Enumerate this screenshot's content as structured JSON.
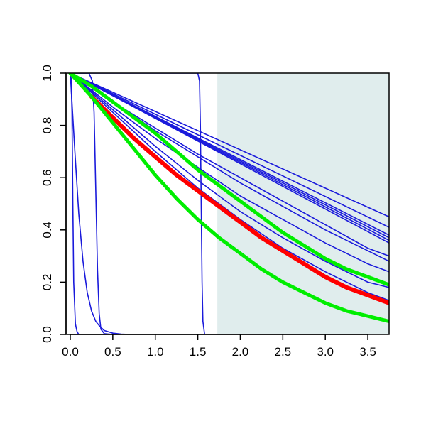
{
  "chart_data": {
    "type": "line",
    "title": "",
    "xlabel": "",
    "ylabel": "",
    "xlim": [
      -0.05,
      3.75
    ],
    "ylim": [
      0,
      1
    ],
    "x_ticks": [
      0.0,
      0.5,
      1.0,
      1.5,
      2.0,
      2.5,
      3.0,
      3.5
    ],
    "x_tick_labels": [
      "0.0",
      "0.5",
      "1.0",
      "1.5",
      "2.0",
      "2.5",
      "3.0",
      "3.5"
    ],
    "y_ticks": [
      0.0,
      0.2,
      0.4,
      0.6,
      0.8,
      1.0
    ],
    "y_tick_labels": [
      "0.0",
      "0.2",
      "0.4",
      "0.6",
      "0.8",
      "1.0"
    ],
    "grid": false,
    "shaded_region": {
      "x_start": 1.73,
      "x_end": 3.75,
      "color": "#e0eded"
    },
    "colors": {
      "blue": "#1a1adb",
      "red": "#ff0000",
      "green": "#00ee00"
    },
    "series": [
      {
        "color": "blue",
        "x": [
          0,
          0.01,
          0.02,
          0.03,
          0.04,
          0.06,
          0.08,
          0.1
        ],
        "y": [
          1,
          0.98,
          0.85,
          0.5,
          0.2,
          0.04,
          0.01,
          0
        ]
      },
      {
        "color": "blue",
        "x": [
          0,
          0.05,
          0.1,
          0.15,
          0.2,
          0.25,
          0.3,
          0.35,
          0.4,
          0.5,
          0.6,
          0.7
        ],
        "y": [
          1,
          0.72,
          0.46,
          0.28,
          0.16,
          0.09,
          0.05,
          0.03,
          0.015,
          0.005,
          0.001,
          0
        ]
      },
      {
        "color": "blue",
        "x": [
          0,
          0.22,
          0.26,
          0.28,
          0.3,
          0.32,
          0.34,
          0.36,
          0.4,
          0.5
        ],
        "y": [
          1,
          1,
          0.97,
          0.85,
          0.55,
          0.25,
          0.08,
          0.02,
          0.003,
          0
        ]
      },
      {
        "color": "blue",
        "x": [
          0,
          1.5,
          1.52,
          1.53,
          1.54,
          1.55,
          1.56,
          1.58
        ],
        "y": [
          1,
          1,
          0.97,
          0.8,
          0.5,
          0.2,
          0.05,
          0
        ]
      },
      {
        "color": "blue",
        "x": [
          0,
          3.75
        ],
        "y": [
          1,
          0.45
        ]
      },
      {
        "color": "blue",
        "x": [
          0,
          3.75
        ],
        "y": [
          1,
          0.41
        ]
      },
      {
        "color": "blue",
        "x": [
          0,
          3.75
        ],
        "y": [
          1,
          0.38
        ]
      },
      {
        "color": "blue",
        "x": [
          0,
          3.75
        ],
        "y": [
          1,
          0.37
        ]
      },
      {
        "color": "blue",
        "x": [
          0,
          3.75
        ],
        "y": [
          1,
          0.36
        ]
      },
      {
        "color": "blue",
        "x": [
          0,
          3.75
        ],
        "y": [
          1,
          0.35
        ]
      },
      {
        "color": "blue",
        "x": [
          0,
          0.5,
          1,
          1.5,
          2,
          2.5,
          3,
          3.5,
          3.75
        ],
        "y": [
          1,
          0.89,
          0.79,
          0.69,
          0.6,
          0.51,
          0.42,
          0.33,
          0.3
        ]
      },
      {
        "color": "blue",
        "x": [
          0,
          0.5,
          1,
          1.5,
          2,
          2.5,
          3,
          3.5,
          3.75
        ],
        "y": [
          1,
          0.89,
          0.78,
          0.68,
          0.58,
          0.49,
          0.4,
          0.32,
          0.28
        ]
      },
      {
        "color": "blue",
        "x": [
          0,
          0.5,
          1,
          1.5,
          2,
          2.5,
          3,
          3.5,
          3.75
        ],
        "y": [
          1,
          0.87,
          0.75,
          0.64,
          0.53,
          0.44,
          0.35,
          0.27,
          0.24
        ]
      },
      {
        "color": "blue",
        "x": [
          0,
          0.5,
          1,
          1.5,
          2,
          2.5,
          3,
          3.5,
          3.75
        ],
        "y": [
          1,
          0.86,
          0.72,
          0.59,
          0.47,
          0.37,
          0.28,
          0.2,
          0.18
        ]
      },
      {
        "color": "blue",
        "x": [
          0,
          0.5,
          1,
          1.5,
          2,
          2.5,
          3,
          3.5,
          3.75
        ],
        "y": [
          1,
          0.85,
          0.7,
          0.56,
          0.44,
          0.33,
          0.24,
          0.16,
          0.13
        ]
      },
      {
        "color": "red",
        "x": [
          0.25,
          0.5,
          0.75,
          1,
          1.25,
          1.5,
          1.75,
          2,
          2.25,
          2.5,
          2.75,
          3,
          3.25,
          3.5,
          3.75
        ],
        "y": [
          0.91,
          0.83,
          0.75,
          0.68,
          0.61,
          0.55,
          0.49,
          0.43,
          0.37,
          0.32,
          0.27,
          0.22,
          0.18,
          0.15,
          0.12
        ]
      },
      {
        "color": "green",
        "x": [
          0,
          0.25,
          0.5,
          0.75,
          1,
          1.25,
          1.5,
          1.75,
          2,
          2.25,
          2.5,
          2.75,
          3,
          3.25,
          3.5,
          3.75
        ],
        "y": [
          1,
          0.95,
          0.89,
          0.83,
          0.77,
          0.7,
          0.63,
          0.57,
          0.51,
          0.45,
          0.39,
          0.34,
          0.29,
          0.25,
          0.22,
          0.19
        ]
      },
      {
        "color": "green",
        "x": [
          0,
          0.25,
          0.5,
          0.75,
          1,
          1.25,
          1.5,
          1.75,
          2,
          2.25,
          2.5,
          2.75,
          3,
          3.25,
          3.5,
          3.75
        ],
        "y": [
          1,
          0.91,
          0.81,
          0.71,
          0.61,
          0.52,
          0.44,
          0.37,
          0.31,
          0.25,
          0.2,
          0.16,
          0.12,
          0.09,
          0.07,
          0.05
        ]
      }
    ]
  }
}
